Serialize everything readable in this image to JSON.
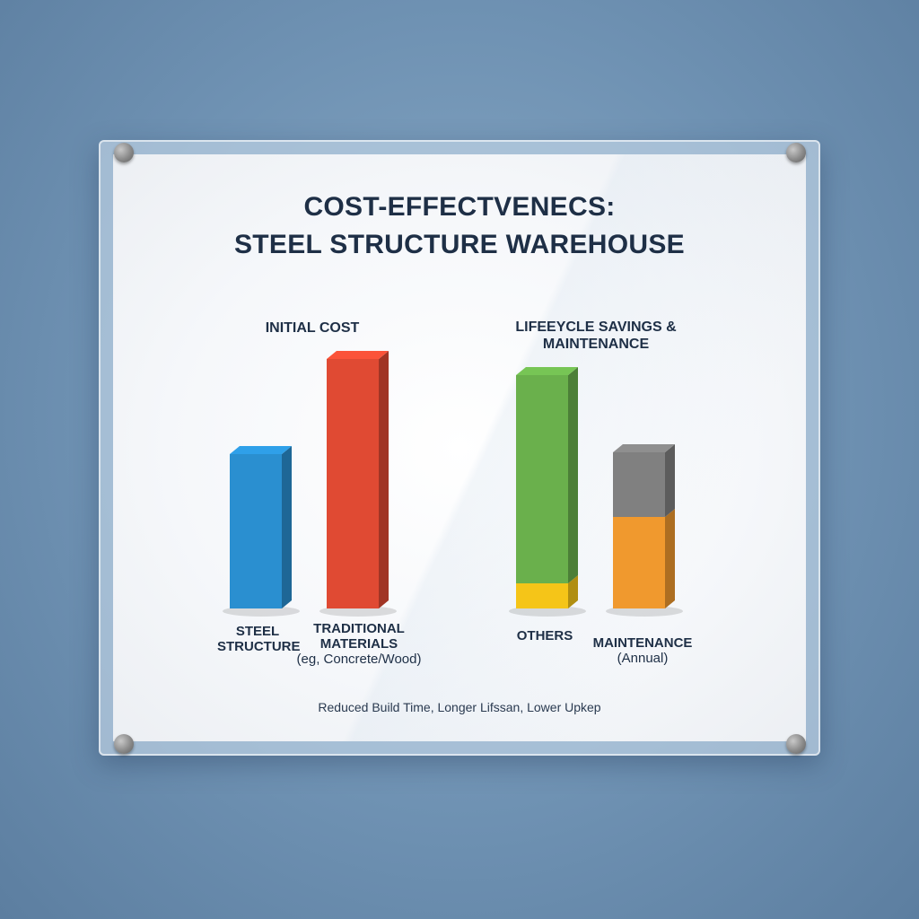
{
  "title": {
    "line1": "COST-EFFECTVENECS:",
    "line2": "STEEL STRUCTURE WAREHOUSE"
  },
  "footer": "Reduced Build Time, Longer Lifssan, Lower Upkep",
  "chart_data": [
    {
      "type": "bar",
      "title": "INITIAL COST",
      "categories": [
        {
          "label": "STEEL STRUCTURE",
          "sub": ""
        },
        {
          "label": "TRADITIONAL MATERIALS",
          "sub": "(eg, Concrete/Wood)"
        }
      ],
      "values": [
        172,
        278
      ],
      "colors": [
        "#2a8fd0",
        "#e04a33"
      ]
    },
    {
      "type": "bar",
      "title": "LIFEEYCLE SAVINGS & MAINTENANCE",
      "categories": [
        {
          "label": "OTHERS",
          "sub": ""
        },
        {
          "label": "MAINTENANCE",
          "sub": "(Annual)"
        }
      ],
      "stacks": [
        [
          {
            "value": 28,
            "color": "#f5c518"
          },
          {
            "value": 232,
            "color": "#6ab04c"
          }
        ],
        [
          {
            "value": 102,
            "color": "#f0992e"
          },
          {
            "value": 72,
            "color": "#808080"
          }
        ]
      ]
    }
  ]
}
